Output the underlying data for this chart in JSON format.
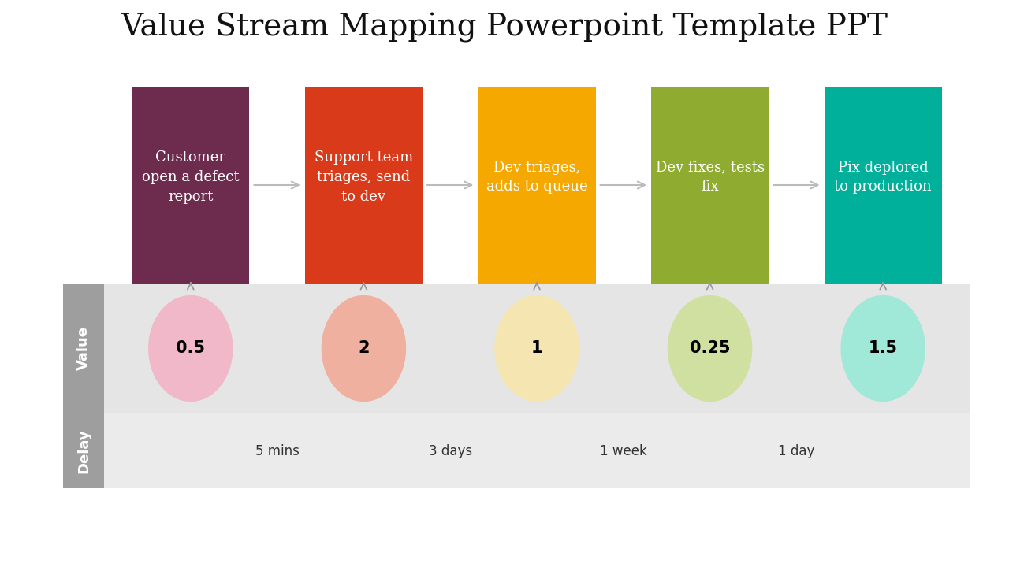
{
  "title": "Value Stream Mapping Powerpoint Template PPT",
  "title_fontsize": 28,
  "background_color": "#ffffff",
  "steps": [
    {
      "label": "Customer\nopen a defect\nreport",
      "box_color": "#6d2b4e",
      "circle_color": "#f0b8c8",
      "value": "0.5",
      "text_color": "#ffffff",
      "circle_text_color": "#000000"
    },
    {
      "label": "Support team\ntriages, send\nto dev",
      "box_color": "#d93b1a",
      "circle_color": "#f0b0a0",
      "value": "2",
      "text_color": "#ffffff",
      "circle_text_color": "#000000"
    },
    {
      "label": "Dev triages,\nadds to queue",
      "box_color": "#f5a800",
      "circle_color": "#f5e5b0",
      "value": "1",
      "text_color": "#ffffff",
      "circle_text_color": "#000000"
    },
    {
      "label": "Dev fixes, tests\nfix",
      "box_color": "#8fac30",
      "circle_color": "#d0e0a0",
      "value": "0.25",
      "text_color": "#ffffff",
      "circle_text_color": "#000000"
    },
    {
      "label": "Pix deplored\nto production",
      "box_color": "#00b09b",
      "circle_color": "#a0e8d8",
      "value": "1.5",
      "text_color": "#ffffff",
      "circle_text_color": "#000000"
    }
  ],
  "delays": [
    "5 mins",
    "3 days",
    "1 week",
    "1 day"
  ],
  "value_label": "Value",
  "delay_label": "Delay",
  "value_row_bg": "#e5e5e5",
  "delay_row_bg": "#ebebeb",
  "label_bg": "#9e9e9e",
  "label_text_color": "#ffffff"
}
